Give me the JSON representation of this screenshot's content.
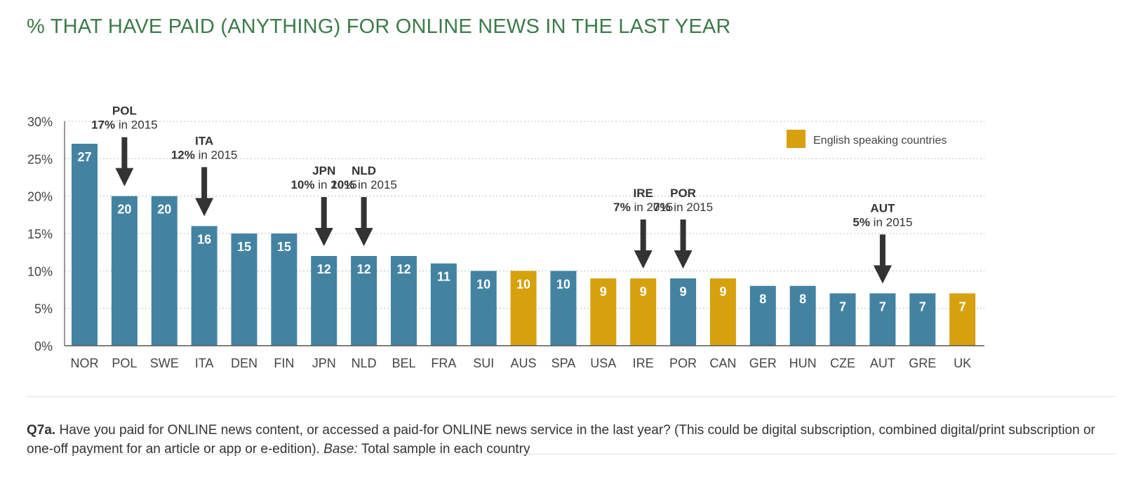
{
  "title": "% THAT HAVE PAID (ANYTHING) FOR ONLINE NEWS IN THE LAST YEAR",
  "colors": {
    "blue": "#4383a1",
    "gold": "#d6a10d",
    "title": "#3d7a4a",
    "arrow": "#333333"
  },
  "legend": {
    "label": "English speaking countries"
  },
  "note": {
    "q_label": "Q7a.",
    "question": " Have you paid for ONLINE news content, or accessed a paid-for ONLINE news service in the last year? (This could be digital subscription, combined digital/print subscription or one-off payment for an article or app or e-edition). ",
    "base_label": "Base:",
    "base_text": " Total sample in each country"
  },
  "chart_data": {
    "type": "bar",
    "categories": [
      "NOR",
      "POL",
      "SWE",
      "ITA",
      "DEN",
      "FIN",
      "JPN",
      "NLD",
      "BEL",
      "FRA",
      "SUI",
      "AUS",
      "SPA",
      "USA",
      "IRE",
      "POR",
      "CAN",
      "GER",
      "HUN",
      "CZE",
      "AUT",
      "GRE",
      "UK"
    ],
    "values": [
      27,
      20,
      20,
      16,
      15,
      15,
      12,
      12,
      12,
      11,
      10,
      10,
      10,
      9,
      9,
      9,
      9,
      8,
      8,
      7,
      7,
      7,
      7
    ],
    "english_speaking": [
      false,
      false,
      false,
      false,
      false,
      false,
      false,
      false,
      false,
      false,
      false,
      true,
      false,
      true,
      true,
      false,
      true,
      false,
      false,
      false,
      false,
      false,
      true
    ],
    "yticks": [
      "0%",
      "5%",
      "10%",
      "15%",
      "20%",
      "25%",
      "30%"
    ],
    "ylim": [
      0,
      30
    ],
    "grid": true,
    "legend_position": "top-right",
    "annotations": [
      {
        "index": 1,
        "country": "POL",
        "pct": "17%",
        "suffix": " in 2015",
        "value2015": 17
      },
      {
        "index": 3,
        "country": "ITA",
        "pct": "12%",
        "suffix": " in 2015",
        "value2015": 12
      },
      {
        "index": 6,
        "country": "JPN",
        "pct": "10%",
        "suffix": " in 2015",
        "value2015": 10
      },
      {
        "index": 7,
        "country": "NLD",
        "pct": "10%",
        "suffix": " in 2015",
        "value2015": 10
      },
      {
        "index": 14,
        "country": "IRE",
        "pct": "7%",
        "suffix": " in 2015",
        "value2015": 7
      },
      {
        "index": 15,
        "country": "POR",
        "pct": "7%",
        "suffix": " in 2015",
        "value2015": 7
      },
      {
        "index": 20,
        "country": "AUT",
        "pct": "5%",
        "suffix": " in 2015",
        "value2015": 5
      }
    ]
  }
}
